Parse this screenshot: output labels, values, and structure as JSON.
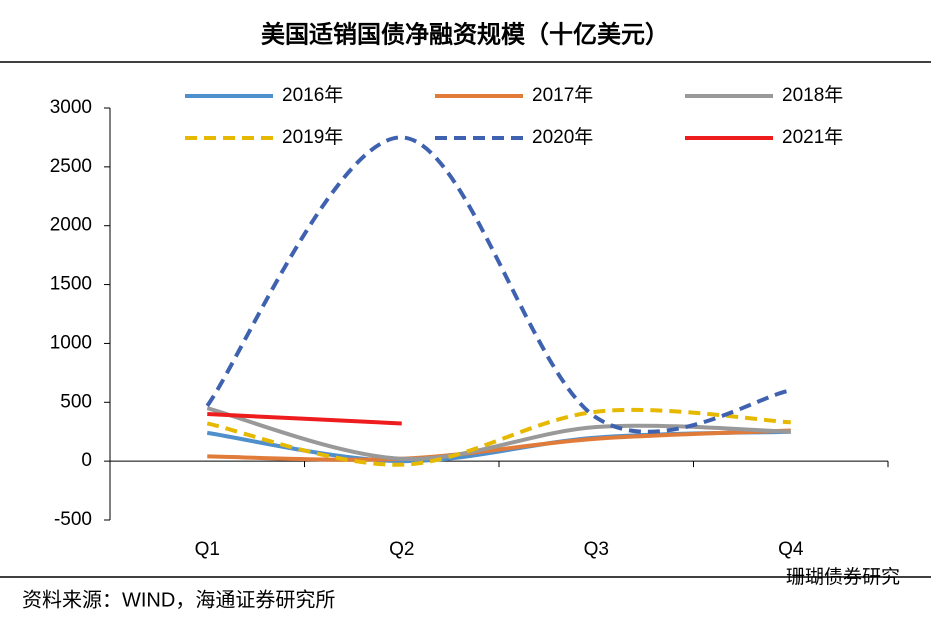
{
  "chart_data": {
    "type": "line",
    "title": "美国适销国债净融资规模（十亿美元）",
    "source": "资料来源：WIND，海通证券研究所",
    "watermark": "珊瑚债券研究",
    "categories": [
      "Q1",
      "Q2",
      "Q3",
      "Q4"
    ],
    "ylim": [
      -500,
      3000
    ],
    "yticks": [
      -500,
      0,
      500,
      1000,
      1500,
      2000,
      2500,
      3000
    ],
    "series": [
      {
        "name": "2016年",
        "color": "#4f8fcc",
        "dashed": false,
        "values": [
          240,
          0,
          200,
          250
        ]
      },
      {
        "name": "2017年",
        "color": "#e07b39",
        "dashed": false,
        "values": [
          40,
          20,
          190,
          260
        ]
      },
      {
        "name": "2018年",
        "color": "#999999",
        "dashed": false,
        "values": [
          450,
          20,
          290,
          250
        ]
      },
      {
        "name": "2019年",
        "color": "#e6b800",
        "dashed": true,
        "values": [
          320,
          -30,
          420,
          330
        ]
      },
      {
        "name": "2020年",
        "color": "#3f62b0",
        "dashed": true,
        "values": [
          470,
          2750,
          370,
          600
        ]
      },
      {
        "name": "2021年",
        "color": "#ee1c1c",
        "dashed": false,
        "values": [
          400,
          320,
          null,
          null
        ]
      }
    ]
  }
}
